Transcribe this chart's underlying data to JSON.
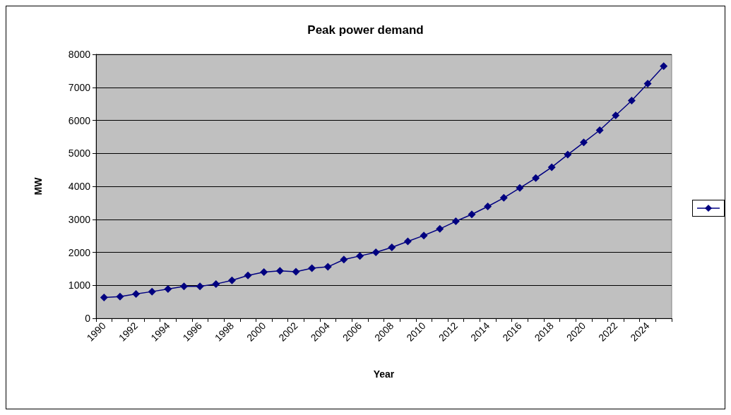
{
  "chart_data": {
    "type": "line",
    "title": "Peak power demand",
    "xlabel": "Year",
    "ylabel": "MW",
    "categories": [
      "1990",
      null,
      "1992",
      null,
      "1994",
      null,
      "1996",
      null,
      "1998",
      null,
      "2000",
      null,
      "2002",
      null,
      "2004",
      null,
      "2006",
      null,
      "2008",
      null,
      "2010",
      null,
      "2012",
      null,
      "2014",
      null,
      "2016",
      null,
      "2018",
      null,
      "2020",
      null,
      "2022",
      null,
      "2024",
      null
    ],
    "series": [
      {
        "color": "#000080",
        "values": [
          630,
          660,
          740,
          810,
          890,
          970,
          970,
          1040,
          1150,
          1300,
          1400,
          1440,
          1410,
          1520,
          1560,
          1780,
          1890,
          2000,
          2150,
          2330,
          2510,
          2710,
          2940,
          3150,
          3390,
          3650,
          3950,
          4250,
          4580,
          4960,
          5330,
          5700,
          6150,
          6600,
          7110,
          7640
        ]
      }
    ],
    "ylim": [
      0,
      8000
    ],
    "yticks": [
      0,
      1000,
      2000,
      3000,
      4000,
      5000,
      6000,
      7000,
      8000
    ],
    "grid": "y",
    "marker": "diamond",
    "line_style": "solid"
  }
}
